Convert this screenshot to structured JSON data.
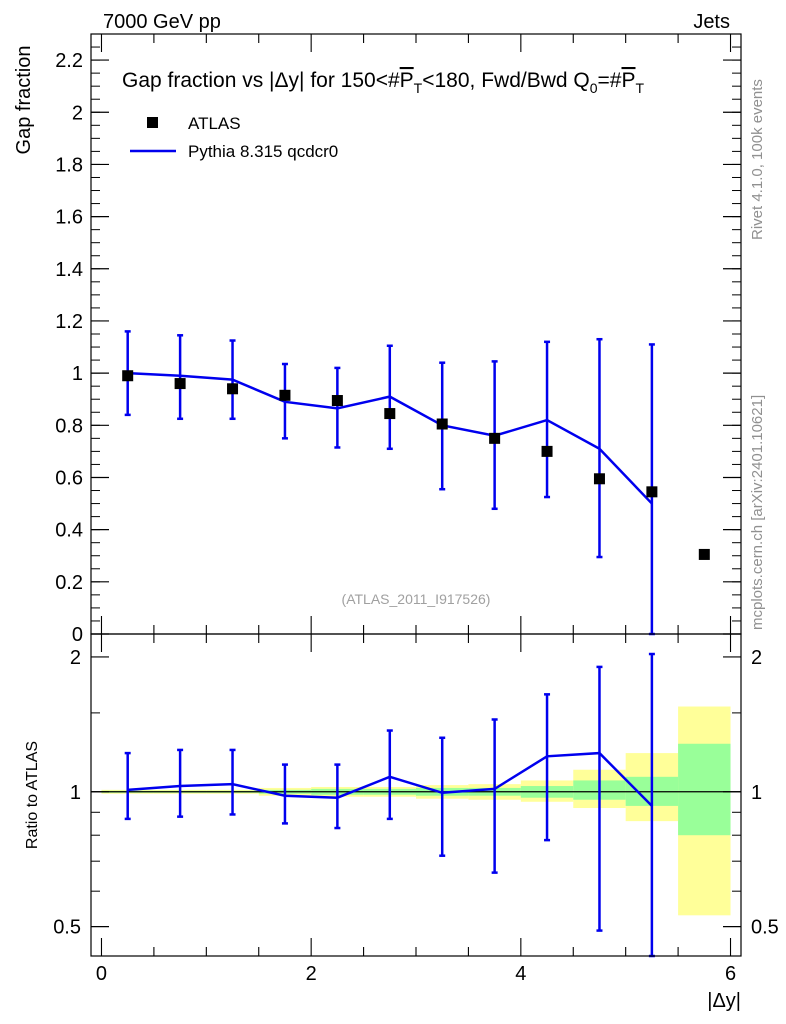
{
  "header": {
    "left": "7000 GeV pp",
    "right": "Jets"
  },
  "side_labels": {
    "rivet": "Rivet 4.1.0,  100k events",
    "mcplots": "mcplots.cern.ch [arXiv:2401.10621]"
  },
  "annotation": "(ATLAS_2011_I917526)",
  "colors": {
    "data": "#000000",
    "mc": "#0000ee",
    "band_inner": "#99ff99",
    "band_outer": "#ffff99"
  },
  "chart_data": [
    {
      "type": "scatter",
      "panel": "main",
      "title": "Gap fraction vs |Δy| for 150<#P̅T<180, Fwd/Bwd Q0=#P̅T",
      "ylabel": "Gap fraction",
      "xlim": [
        -0.1,
        6.1
      ],
      "ylim": [
        0,
        2.3
      ],
      "yticks": [
        "0",
        "0.2",
        "0.4",
        "0.6",
        "0.8",
        "1",
        "1.2",
        "1.4",
        "1.6",
        "1.8",
        "2",
        "2.2"
      ],
      "xticks": [
        "0",
        "2",
        "4",
        "6"
      ],
      "legend": [
        "ATLAS",
        "Pythia 8.315 qcdcr0"
      ],
      "legend_position": "top-left",
      "data_series": {
        "name": "ATLAS",
        "x": [
          0.25,
          0.75,
          1.25,
          1.75,
          2.25,
          2.75,
          3.25,
          3.75,
          4.25,
          4.75,
          5.25,
          5.75
        ],
        "y": [
          0.99,
          0.96,
          0.94,
          0.915,
          0.895,
          0.845,
          0.805,
          0.75,
          0.7,
          0.595,
          0.545,
          0.305
        ]
      },
      "mc_series": {
        "name": "Pythia 8.315 qcdcr0",
        "x": [
          0.25,
          0.75,
          1.25,
          1.75,
          2.25,
          2.75,
          3.25,
          3.75,
          4.25,
          4.75,
          5.25
        ],
        "y": [
          1.0,
          0.99,
          0.975,
          0.89,
          0.865,
          0.91,
          0.8,
          0.76,
          0.82,
          0.71,
          0.5
        ],
        "err_low": [
          0.84,
          0.825,
          0.825,
          0.75,
          0.715,
          0.71,
          0.555,
          0.48,
          0.525,
          0.295,
          -0.1
        ],
        "err_high": [
          1.16,
          1.145,
          1.125,
          1.035,
          1.02,
          1.105,
          1.04,
          1.045,
          1.12,
          1.13,
          1.11
        ]
      }
    },
    {
      "type": "line",
      "panel": "ratio",
      "ylabel": "Ratio to ATLAS",
      "xlabel": "|Δy|",
      "ylim": [
        0.43,
        2.25
      ],
      "yscale": "log",
      "yticks": [
        "0.5",
        "1",
        "2"
      ],
      "xticks": [
        "0",
        "2",
        "4",
        "6"
      ],
      "x_edges": [
        0,
        0.5,
        1.0,
        1.5,
        2.0,
        2.5,
        3.0,
        3.5,
        4.0,
        4.5,
        5.0,
        5.5,
        6.0
      ],
      "band_inner": [
        [
          0.995,
          1.005
        ],
        [
          0.995,
          1.005
        ],
        [
          0.995,
          1.005
        ],
        [
          0.99,
          1.01
        ],
        [
          0.985,
          1.015
        ],
        [
          0.985,
          1.015
        ],
        [
          0.98,
          1.02
        ],
        [
          0.98,
          1.02
        ],
        [
          0.97,
          1.03
        ],
        [
          0.96,
          1.06
        ],
        [
          0.93,
          1.08
        ],
        [
          0.8,
          1.28
        ]
      ],
      "band_outer": [
        [
          0.99,
          1.01
        ],
        [
          0.99,
          1.01
        ],
        [
          0.99,
          1.01
        ],
        [
          0.98,
          1.02
        ],
        [
          0.975,
          1.025
        ],
        [
          0.975,
          1.025
        ],
        [
          0.965,
          1.035
        ],
        [
          0.96,
          1.04
        ],
        [
          0.95,
          1.06
        ],
        [
          0.92,
          1.12
        ],
        [
          0.86,
          1.22
        ],
        [
          0.53,
          1.55
        ]
      ],
      "mc_series": {
        "name": "Pythia 8.315 qcdcr0",
        "x": [
          0.25,
          0.75,
          1.25,
          1.75,
          2.25,
          2.75,
          3.25,
          3.75,
          4.25,
          4.75,
          5.25
        ],
        "y": [
          1.01,
          1.03,
          1.04,
          0.98,
          0.97,
          1.08,
          0.995,
          1.015,
          1.2,
          1.22,
          0.93
        ],
        "err_low": [
          0.87,
          0.88,
          0.89,
          0.85,
          0.83,
          0.87,
          0.72,
          0.66,
          0.78,
          0.49,
          0.3
        ],
        "err_high": [
          1.22,
          1.24,
          1.24,
          1.15,
          1.15,
          1.37,
          1.32,
          1.45,
          1.65,
          1.9,
          2.03
        ]
      }
    }
  ]
}
